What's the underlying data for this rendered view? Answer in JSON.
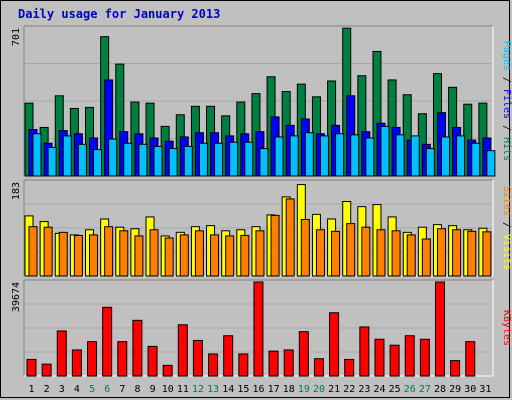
{
  "title": "Daily usage for January 2013",
  "colors": {
    "hits": "#008040",
    "files": "#0000ff",
    "pages": "#00c0ff",
    "visits": "#ffff00",
    "sites": "#ff8000",
    "kbytes": "#ff0000",
    "weekend_tick": "#008040",
    "weekday_tick": "#000000"
  },
  "chart_data": [
    {
      "type": "bar",
      "panel": "requests",
      "ymax_label": "701",
      "ylim": [
        0,
        701
      ],
      "side_labels": [
        "Pages",
        "Files",
        "Hits"
      ],
      "categories": [
        "1",
        "2",
        "3",
        "4",
        "5",
        "6",
        "7",
        "8",
        "9",
        "10",
        "11",
        "12",
        "13",
        "14",
        "15",
        "16",
        "17",
        "18",
        "19",
        "20",
        "21",
        "22",
        "23",
        "24",
        "25",
        "26",
        "27",
        "28",
        "29",
        "30",
        "31"
      ],
      "series": [
        {
          "name": "Hits",
          "values": [
            345,
            230,
            380,
            320,
            325,
            660,
            530,
            350,
            345,
            235,
            290,
            330,
            330,
            285,
            350,
            390,
            470,
            400,
            435,
            375,
            450,
            700,
            475,
            590,
            455,
            385,
            295,
            485,
            420,
            340,
            345
          ]
        },
        {
          "name": "Files",
          "values": [
            220,
            155,
            215,
            200,
            180,
            455,
            210,
            200,
            180,
            165,
            185,
            205,
            205,
            190,
            200,
            210,
            280,
            240,
            270,
            200,
            240,
            380,
            210,
            250,
            230,
            170,
            150,
            300,
            230,
            170,
            180
          ]
        },
        {
          "name": "Pages",
          "values": [
            200,
            135,
            190,
            150,
            125,
            175,
            155,
            150,
            140,
            130,
            140,
            155,
            155,
            160,
            160,
            130,
            185,
            190,
            205,
            190,
            200,
            195,
            180,
            235,
            195,
            190,
            130,
            185,
            190,
            155,
            120
          ]
        }
      ]
    },
    {
      "type": "bar",
      "panel": "visits",
      "ymax_label": "183",
      "ylim": [
        0,
        183
      ],
      "side_labels": [
        "Sites",
        "Visits"
      ],
      "categories": [
        "1",
        "2",
        "3",
        "4",
        "5",
        "6",
        "7",
        "8",
        "9",
        "10",
        "11",
        "12",
        "13",
        "14",
        "15",
        "16",
        "17",
        "18",
        "19",
        "20",
        "21",
        "22",
        "23",
        "24",
        "25",
        "26",
        "27",
        "28",
        "29",
        "30",
        "31"
      ],
      "series": [
        {
          "name": "Visits",
          "values": [
            117,
            106,
            83,
            80,
            90,
            111,
            95,
            92,
            115,
            78,
            85,
            96,
            98,
            88,
            90,
            96,
            119,
            154,
            178,
            120,
            111,
            145,
            135,
            139,
            115,
            85,
            95,
            100,
            98,
            90,
            93
          ]
        },
        {
          "name": "Sites",
          "values": [
            96,
            95,
            85,
            79,
            80,
            96,
            88,
            78,
            90,
            74,
            80,
            88,
            80,
            78,
            79,
            88,
            118,
            150,
            110,
            90,
            87,
            102,
            95,
            90,
            88,
            80,
            72,
            92,
            90,
            87,
            86
          ]
        }
      ]
    },
    {
      "type": "bar",
      "panel": "kbytes",
      "ymax_label": "39674",
      "ylim": [
        0,
        39674
      ],
      "side_labels": [
        "KBytes"
      ],
      "categories": [
        "1",
        "2",
        "3",
        "4",
        "5",
        "6",
        "7",
        "8",
        "9",
        "10",
        "11",
        "12",
        "13",
        "14",
        "15",
        "16",
        "17",
        "18",
        "19",
        "20",
        "21",
        "22",
        "23",
        "24",
        "25",
        "26",
        "27",
        "28",
        "29",
        "30",
        "31"
      ],
      "series": [
        {
          "name": "KBytes",
          "values": [
            7000,
            5000,
            19000,
            11000,
            14500,
            29000,
            14500,
            23500,
            12500,
            4500,
            21600,
            15000,
            9300,
            17000,
            9300,
            39674,
            10500,
            11000,
            18700,
            7300,
            26700,
            7000,
            20700,
            15500,
            13000,
            17000,
            15500,
            39674,
            6500,
            14500,
            0
          ]
        }
      ]
    }
  ]
}
